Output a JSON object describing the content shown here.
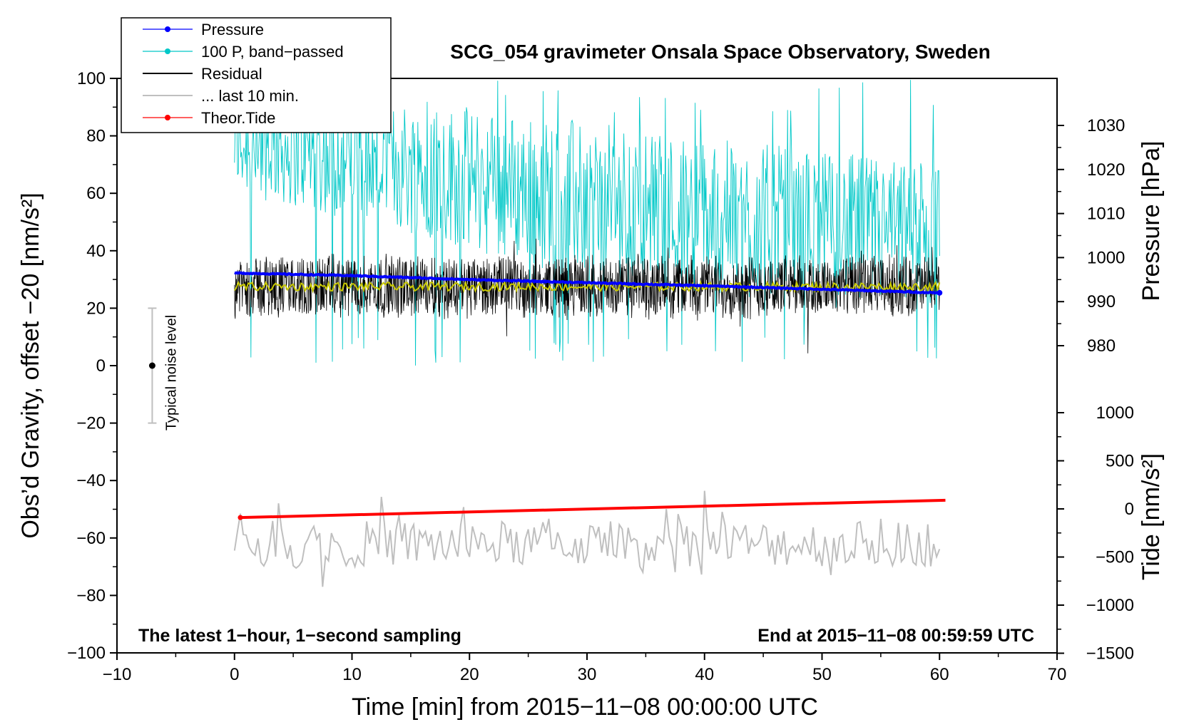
{
  "chart_data": {
    "type": "line",
    "title": "SCG_054 gravimeter Onsala Space Observatory, Sweden",
    "xlabel": "Time [min] from 2015−11−08 00:00:00 UTC",
    "ylabel_left": "Obs’d Gravity, offset −20 [nm/s²]",
    "ylabel_right_top": "Pressure [hPa]",
    "ylabel_right_bottom": "Tide [nm/s²]",
    "xlim": [
      -10,
      70
    ],
    "ylim": [
      -100,
      100
    ],
    "pressure_ylim": [
      978,
      1036
    ],
    "tide_ylim": [
      -1500,
      1000
    ],
    "x_ticks": [
      -10,
      0,
      10,
      20,
      30,
      40,
      50,
      60,
      70
    ],
    "x_tick_labels": [
      "−10",
      "0",
      "10",
      "20",
      "30",
      "40",
      "50",
      "60",
      "70"
    ],
    "y_ticks": [
      -100,
      -80,
      -60,
      -40,
      -20,
      0,
      20,
      40,
      60,
      80,
      100
    ],
    "y_tick_labels": [
      "−100",
      "−80",
      "−60",
      "−40",
      "−20",
      "0",
      "20",
      "40",
      "60",
      "80",
      "100"
    ],
    "pressure_ticks": [
      980,
      990,
      1000,
      1010,
      1020,
      1030
    ],
    "pressure_tick_labels": [
      "980",
      "990",
      "1000",
      "1010",
      "1020",
      "1030"
    ],
    "tide_ticks": [
      -1500,
      -1000,
      -500,
      0,
      500,
      1000
    ],
    "tide_tick_labels": [
      "−1500",
      "−1000",
      "−500",
      "0",
      "500",
      "1000"
    ],
    "annotation_left": "The latest 1−hour, 1−second sampling",
    "annotation_right": "End at 2015−11−08 00:59:59 UTC",
    "noise_bar": {
      "label": "Typical noise level",
      "x": -7,
      "center": 0,
      "low": -20,
      "high": 20
    },
    "legend": {
      "position": "top-left",
      "entries": [
        {
          "label": "Pressure",
          "color": "#0000ff",
          "marker": true
        },
        {
          "label": "100 P, band−passed",
          "color": "#00c8c8",
          "marker": true
        },
        {
          "label": "Residual",
          "color": "#000000",
          "marker": false
        },
        {
          "label": "... last 10 min.",
          "color": "#bfbfbf",
          "marker": false
        },
        {
          "label": "Theor.Tide",
          "color": "#ff0000",
          "marker": true
        }
      ]
    },
    "series": [
      {
        "name": "Pressure",
        "axis": "pressure",
        "color": "#0000ff",
        "t": [
          0,
          10,
          20,
          30,
          40,
          50,
          60
        ],
        "values": [
          996.5,
          995.9,
          995.0,
          994.3,
          993.6,
          992.8,
          992.0
        ]
      },
      {
        "name": "100 P, band−passed",
        "axis": "left",
        "color": "#00c8c8",
        "envelope_min": [
          60,
          50,
          40,
          30,
          25,
          20,
          20
        ],
        "envelope_max": [
          95,
          95,
          90,
          85,
          80,
          75,
          70
        ],
        "t_env": [
          0,
          10,
          20,
          30,
          40,
          50,
          60
        ]
      },
      {
        "name": "Residual",
        "axis": "left",
        "color": "#000000",
        "mean": 27.5,
        "amplitude": 10
      },
      {
        "name": "Residual smoothed",
        "axis": "left",
        "color": "#c8c800",
        "mean": 27.5
      },
      {
        "name": "... last 10 min.",
        "axis": "left",
        "color": "#bfbfbf",
        "mean": -62,
        "amplitude": 8
      },
      {
        "name": "Theor.Tide",
        "axis": "tide",
        "color": "#ff0000",
        "t": [
          0.5,
          60.5
        ],
        "values": [
          -90,
          90
        ]
      }
    ]
  }
}
